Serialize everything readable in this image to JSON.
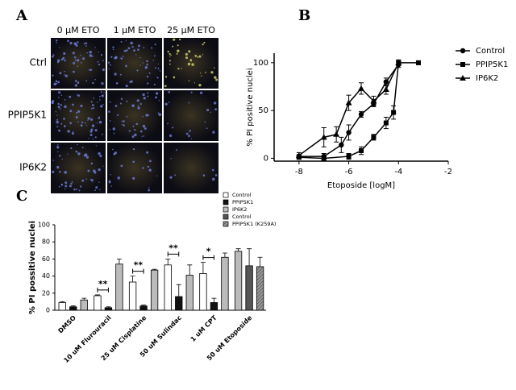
{
  "panel_a": {
    "label": "A",
    "columns": [
      "0 μM ETO",
      "1 μM ETO",
      "25 μM ETO"
    ],
    "rows": [
      "Ctrl",
      "PPIP5K1",
      "IP6K2"
    ]
  },
  "chart_data": [
    {
      "type": "scatter",
      "label": "B",
      "x_label": "Etoposide [logM]",
      "y_label": "% PI positive nuclei",
      "xlim": [
        -9,
        -2
      ],
      "xticks": [
        -8,
        -6,
        -4,
        -2
      ],
      "ylim": [
        -3,
        110
      ],
      "yticks": [
        0,
        50,
        100
      ],
      "legend": "right",
      "series": [
        {
          "name": "Control",
          "marker": "circle",
          "color": "#000000",
          "x": [
            -8,
            -7,
            -6.3,
            -6,
            -5.5,
            -5,
            -4.5,
            -4
          ],
          "values": [
            2,
            2,
            14,
            27,
            46,
            57,
            80,
            98
          ],
          "errors": [
            2,
            3,
            8,
            8,
            3,
            3,
            4,
            3
          ]
        },
        {
          "name": "PPIP5K1",
          "marker": "square",
          "color": "#000000",
          "x": [
            -8,
            -7,
            -6,
            -5.5,
            -5,
            -4.5,
            -4.2,
            -4,
            -3.2
          ],
          "values": [
            1,
            0,
            2,
            8,
            22,
            37,
            48,
            100,
            100
          ],
          "errors": [
            1,
            2,
            3,
            4,
            3,
            6,
            7,
            2,
            2
          ]
        },
        {
          "name": "IP6K2",
          "marker": "triangle",
          "color": "#000000",
          "x": [
            -8,
            -7,
            -6.5,
            -6,
            -5.5,
            -5,
            -4.5,
            -4
          ],
          "values": [
            3,
            22,
            25,
            58,
            73,
            60,
            72,
            100
          ],
          "errors": [
            3,
            10,
            8,
            8,
            6,
            5,
            5,
            3
          ]
        }
      ]
    },
    {
      "type": "bar",
      "label": "C",
      "y_label": "% PI possitive nuclei",
      "categories": [
        "DMSO",
        "10 uM Flurouracil",
        "25 uM Cisplatine",
        "50 uM Sulindac",
        "1 uM CPT",
        "50 uM Etoposide"
      ],
      "ylim": [
        0,
        100
      ],
      "yticks": [
        0,
        20,
        40,
        60,
        80,
        100
      ],
      "legend": "upper right",
      "significance": [
        null,
        "**",
        "**",
        "**",
        "*",
        null
      ],
      "series": [
        {
          "name": "Control",
          "color": "#ffffff",
          "values": [
            9,
            17,
            33,
            53,
            43,
            null
          ],
          "errors": [
            1,
            1,
            7,
            7,
            13,
            null
          ]
        },
        {
          "name": "PPIP5K1",
          "color": "#111111",
          "values": [
            4,
            3,
            5,
            16,
            9,
            null
          ],
          "errors": [
            1,
            1,
            1,
            14,
            5,
            null
          ]
        },
        {
          "name": "IP6K2",
          "color": "#bbbbbb",
          "values": [
            12,
            54,
            47,
            41,
            62,
            69
          ],
          "errors": [
            2,
            6,
            1,
            12,
            5,
            3
          ]
        },
        {
          "name": "Control",
          "color": "#555555",
          "values": [
            null,
            null,
            null,
            null,
            null,
            52
          ],
          "errors": [
            null,
            null,
            null,
            null,
            null,
            20
          ]
        },
        {
          "name": "PPIP5K1 (K259A)",
          "color": "#999999",
          "hatch": true,
          "values": [
            null,
            null,
            null,
            null,
            null,
            51
          ],
          "errors": [
            null,
            null,
            null,
            null,
            null,
            11
          ]
        }
      ]
    }
  ]
}
